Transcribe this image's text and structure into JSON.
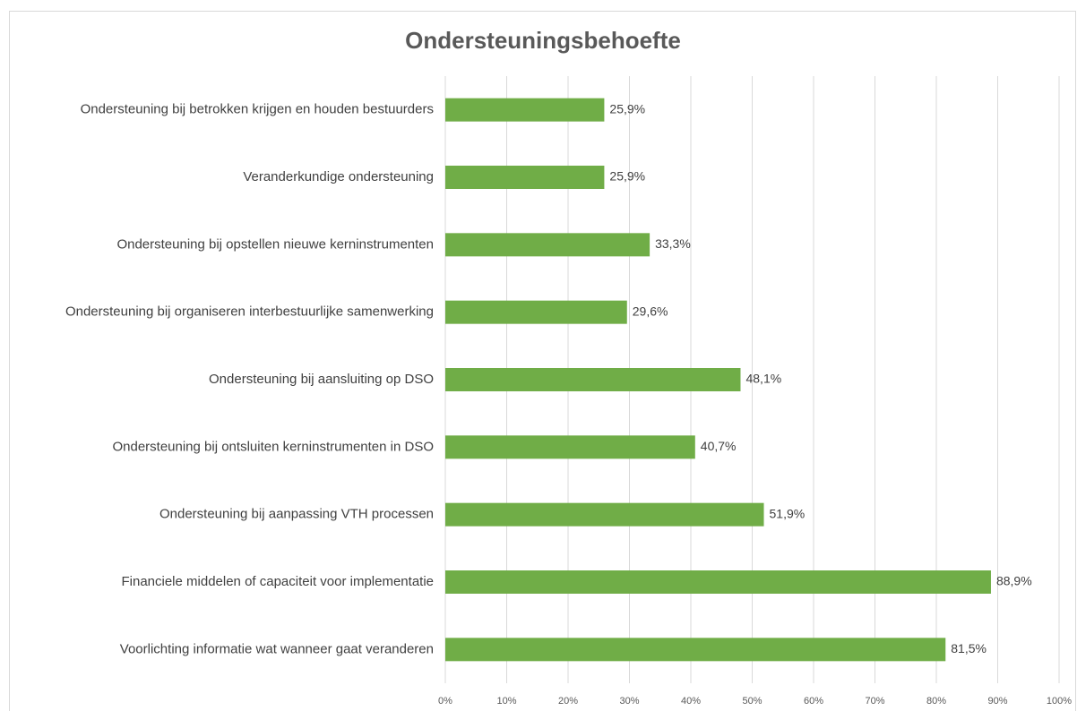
{
  "chart_data": {
    "type": "barh",
    "title": "Ondersteuningsbehoefte",
    "categories": [
      "Ondersteuning bij betrokken krijgen en houden bestuurders",
      "Veranderkundige ondersteuning",
      "Ondersteuning bij opstellen nieuwe kerninstrumenten",
      "Ondersteuning bij organiseren interbestuurlijke samenwerking",
      "Ondersteuning bij aansluiting op DSO",
      "Ondersteuning bij ontsluiten kerninstrumenten in DSO",
      "Ondersteuning bij aanpassing VTH processen",
      "Financiele middelen of capaciteit voor implementatie",
      "Voorlichting informatie wat wanneer gaat veranderen"
    ],
    "values": [
      25.9,
      25.9,
      33.3,
      29.6,
      48.1,
      40.7,
      51.9,
      88.9,
      81.5
    ],
    "value_labels": [
      "25,9%",
      "25,9%",
      "33,3%",
      "29,6%",
      "48,1%",
      "40,7%",
      "51,9%",
      "88,9%",
      "81,5%"
    ],
    "color": "#70ad47",
    "xlim": [
      0,
      100
    ],
    "xticks": [
      {
        "value": 0,
        "label": "0%"
      },
      {
        "value": 10,
        "label": "10%"
      },
      {
        "value": 20,
        "label": "20%"
      },
      {
        "value": 30,
        "label": "30%"
      },
      {
        "value": 40,
        "label": "40%"
      },
      {
        "value": 50,
        "label": "50%"
      },
      {
        "value": 60,
        "label": "60%"
      },
      {
        "value": 70,
        "label": "70%"
      },
      {
        "value": 80,
        "label": "80%"
      },
      {
        "value": 90,
        "label": "90%"
      },
      {
        "value": 100,
        "label": "100%"
      }
    ],
    "grid": true
  }
}
